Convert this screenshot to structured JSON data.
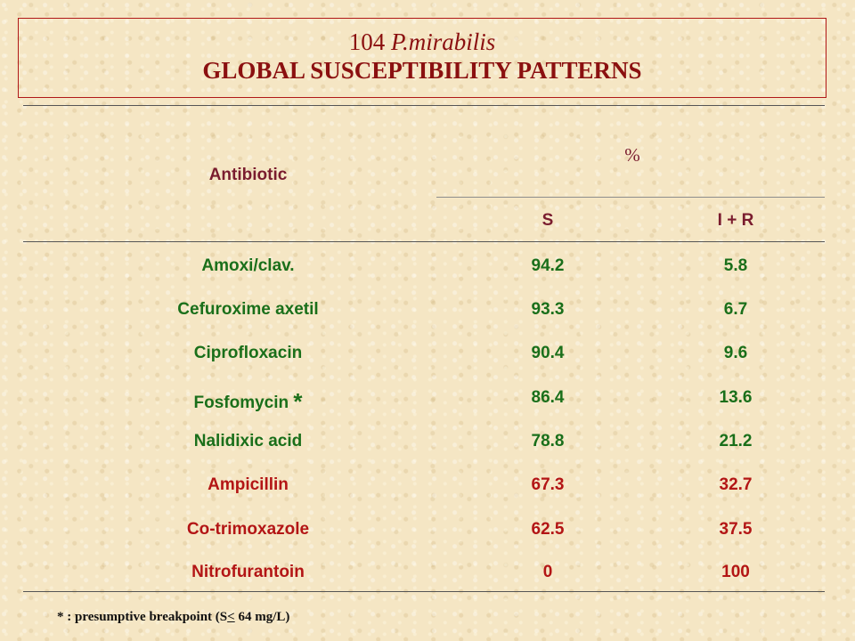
{
  "title": {
    "number": "104",
    "species": "P.mirabilis",
    "subtitle": "GLOBAL SUSCEPTIBILITY PATTERNS"
  },
  "table": {
    "col_antibiotic": "Antibiotic",
    "col_percent": "%",
    "col_s": "S",
    "col_ir": "I + R",
    "rows": [
      {
        "antibiotic": "Amoxi/clav.",
        "s": "94.2",
        "ir": "5.8"
      },
      {
        "antibiotic": "Cefuroxime axetil",
        "s": "93.3",
        "ir": "6.7"
      },
      {
        "antibiotic": "Ciprofloxacin",
        "s": "90.4",
        "ir": "9.6"
      },
      {
        "antibiotic": "Fosfomycin",
        "marker": "*",
        "s": "86.4",
        "ir": "13.6"
      },
      {
        "antibiotic": "Nalidixic acid",
        "s": "78.8",
        "ir": "21.2"
      },
      {
        "antibiotic": "Ampicillin",
        "s": "67.3",
        "ir": "32.7"
      },
      {
        "antibiotic": "Co-trimoxazole",
        "s": "62.5",
        "ir": "37.5"
      },
      {
        "antibiotic": "Nitrofurantoin",
        "s": "0",
        "ir": "100"
      }
    ]
  },
  "footnote": {
    "prefix": "* : presumptive breakpoint (S",
    "symbol": "<",
    "suffix": " 64 mg/L)"
  },
  "colors": {
    "title": "#8b1010",
    "header": "#7a1c2e",
    "susceptible_group": "#1a6f1a",
    "resistant_group": "#b31515"
  }
}
